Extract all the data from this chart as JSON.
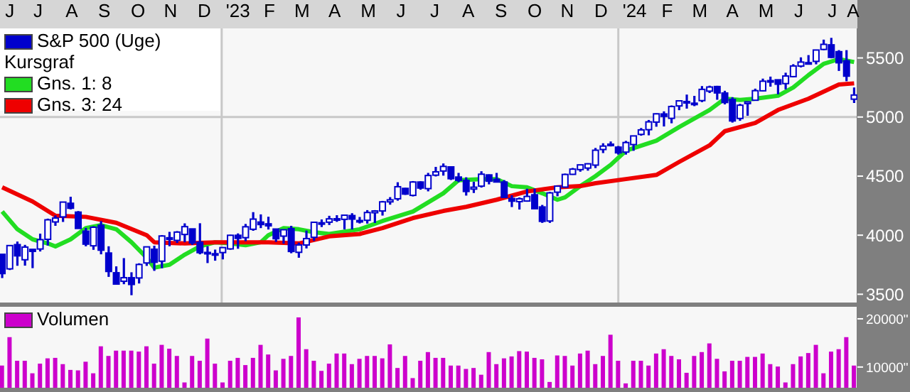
{
  "chart_data": [
    {
      "type": "candlestick",
      "legend": "top left",
      "legend_title": "Kursgraf",
      "xlim": [
        "2022-06-11",
        "2024-08-08"
      ],
      "ylim": [
        3430,
        5750
      ],
      "yticks": [
        3500,
        4000,
        4500,
        5000,
        5500
      ],
      "xticks": [
        {
          "value": "2022-06-20",
          "label": "J"
        },
        {
          "value": "2022-07-16",
          "label": "J"
        },
        {
          "value": "2022-08-16",
          "label": "A"
        },
        {
          "value": "2022-09-15",
          "label": "S"
        },
        {
          "value": "2022-10-16",
          "label": "O"
        },
        {
          "value": "2022-11-15",
          "label": "N"
        },
        {
          "value": "2022-12-16",
          "label": "D"
        },
        {
          "value": "2023-01-16",
          "label": "'23"
        },
        {
          "value": "2023-02-14",
          "label": "F"
        },
        {
          "value": "2023-03-16",
          "label": "M"
        },
        {
          "value": "2023-04-15",
          "label": "A"
        },
        {
          "value": "2023-05-16",
          "label": "M"
        },
        {
          "value": "2023-06-15",
          "label": "J"
        },
        {
          "value": "2023-07-16",
          "label": "J"
        },
        {
          "value": "2023-08-16",
          "label": "A"
        },
        {
          "value": "2023-09-15",
          "label": "S"
        },
        {
          "value": "2023-10-16",
          "label": "O"
        },
        {
          "value": "2023-11-15",
          "label": "N"
        },
        {
          "value": "2023-12-16",
          "label": "D"
        },
        {
          "value": "2024-01-16",
          "label": "'24"
        },
        {
          "value": "2024-02-15",
          "label": "F"
        },
        {
          "value": "2024-03-16",
          "label": "M"
        },
        {
          "value": "2024-04-15",
          "label": "A"
        },
        {
          "value": "2024-05-16",
          "label": "M"
        },
        {
          "value": "2024-06-15",
          "label": "J"
        },
        {
          "value": "2024-07-16",
          "label": "J"
        },
        {
          "value": "2024-08-04",
          "label": "A"
        }
      ],
      "ref_lines": [
        {
          "axis": "x",
          "value": "2023-01-01",
          "label": null,
          "color": "#c8c8c8"
        },
        {
          "axis": "x",
          "value": "2024-01-01",
          "label": null,
          "color": "#c8c8c8"
        },
        {
          "axis": "y",
          "value": 5000,
          "label": null,
          "color": "#c8c8c8"
        }
      ],
      "x": [
        "2022-06-13",
        "2022-06-20",
        "2022-06-27",
        "2022-07-04",
        "2022-07-11",
        "2022-07-18",
        "2022-07-25",
        "2022-08-01",
        "2022-08-08",
        "2022-08-15",
        "2022-08-22",
        "2022-08-29",
        "2022-09-05",
        "2022-09-12",
        "2022-09-19",
        "2022-09-26",
        "2022-10-03",
        "2022-10-10",
        "2022-10-17",
        "2022-10-24",
        "2022-10-31",
        "2022-11-07",
        "2022-11-14",
        "2022-11-21",
        "2022-11-28",
        "2022-12-05",
        "2022-12-12",
        "2022-12-19",
        "2022-12-26",
        "2023-01-02",
        "2023-01-09",
        "2023-01-16",
        "2023-01-23",
        "2023-01-30",
        "2023-02-06",
        "2023-02-13",
        "2023-02-20",
        "2023-02-27",
        "2023-03-06",
        "2023-03-13",
        "2023-03-20",
        "2023-03-27",
        "2023-04-03",
        "2023-04-10",
        "2023-04-17",
        "2023-04-24",
        "2023-05-01",
        "2023-05-08",
        "2023-05-15",
        "2023-05-22",
        "2023-05-29",
        "2023-06-05",
        "2023-06-12",
        "2023-06-19",
        "2023-06-26",
        "2023-07-03",
        "2023-07-10",
        "2023-07-17",
        "2023-07-24",
        "2023-07-31",
        "2023-08-07",
        "2023-08-14",
        "2023-08-21",
        "2023-08-28",
        "2023-09-04",
        "2023-09-11",
        "2023-09-18",
        "2023-09-25",
        "2023-10-02",
        "2023-10-09",
        "2023-10-16",
        "2023-10-23",
        "2023-10-30",
        "2023-11-06",
        "2023-11-13",
        "2023-11-20",
        "2023-11-27",
        "2023-12-04",
        "2023-12-11",
        "2023-12-18",
        "2023-12-25",
        "2024-01-01",
        "2024-01-08",
        "2024-01-15",
        "2024-01-22",
        "2024-01-29",
        "2024-02-05",
        "2024-02-12",
        "2024-02-19",
        "2024-02-26",
        "2024-03-04",
        "2024-03-11",
        "2024-03-18",
        "2024-03-25",
        "2024-04-01",
        "2024-04-08",
        "2024-04-15",
        "2024-04-22",
        "2024-04-29",
        "2024-05-06",
        "2024-05-13",
        "2024-05-20",
        "2024-05-27",
        "2024-06-03",
        "2024-06-10",
        "2024-06-17",
        "2024-06-24",
        "2024-07-01",
        "2024-07-08",
        "2024-07-15",
        "2024-07-22",
        "2024-07-29",
        "2024-08-05"
      ],
      "series": [
        {
          "name": "S&P 500 (Uge)",
          "color": "#0000cc",
          "ohlc": [
            [
              3838,
              3838,
              3637,
              3675
            ],
            [
              3715,
              3913,
              3705,
              3912
            ],
            [
              3920,
              3946,
              3741,
              3825
            ],
            [
              3792,
              3918,
              3742,
              3899
            ],
            [
              3880,
              3880,
              3721,
              3863
            ],
            [
              3883,
              4013,
              3862,
              3962
            ],
            [
              3965,
              4140,
              3912,
              4130
            ],
            [
              4112,
              4167,
              4079,
              4145
            ],
            [
              4155,
              4280,
              4112,
              4280
            ],
            [
              4270,
              4325,
              4218,
              4228
            ],
            [
              4195,
              4204,
              4057,
              4057
            ],
            [
              4034,
              4062,
              3906,
              3924
            ],
            [
              3910,
              4076,
              3876,
              4067
            ],
            [
              4084,
              4119,
              3838,
              3873
            ],
            [
              3849,
              3906,
              3647,
              3693
            ],
            [
              3682,
              3736,
              3584,
              3586
            ],
            [
              3610,
              3806,
              3585,
              3640
            ],
            [
              3640,
              3686,
              3492,
              3583
            ],
            [
              3638,
              3762,
              3591,
              3752
            ],
            [
              3765,
              3905,
              3740,
              3901
            ],
            [
              3881,
              3911,
              3698,
              3771
            ],
            [
              3780,
              4000,
              3720,
              3993
            ],
            [
              3978,
              4028,
              3906,
              3965
            ],
            [
              3956,
              4034,
              3934,
              4026
            ],
            [
              4006,
              4100,
              3940,
              4072
            ],
            [
              4053,
              4053,
              3918,
              3934
            ],
            [
              3940,
              4101,
              3838,
              3852
            ],
            [
              3854,
              3906,
              3764,
              3845
            ],
            [
              3843,
              3878,
              3784,
              3840
            ],
            [
              3853,
              3896,
              3795,
              3895
            ],
            [
              3884,
              4003,
              3877,
              3999
            ],
            [
              3999,
              4015,
              3885,
              3973
            ],
            [
              3979,
              4095,
              3949,
              4071
            ],
            [
              4050,
              4195,
              4037,
              4136
            ],
            [
              4111,
              4176,
              4060,
              4090
            ],
            [
              4096,
              4156,
              4048,
              4079
            ],
            [
              4052,
              4052,
              3943,
              3970
            ],
            [
              3992,
              4048,
              3928,
              4046
            ],
            [
              4055,
              4079,
              3847,
              3862
            ],
            [
              3855,
              3937,
              3809,
              3917
            ],
            [
              3917,
              4039,
              3888,
              3971
            ],
            [
              3982,
              4110,
              3951,
              4109
            ],
            [
              4102,
              4133,
              4069,
              4105
            ],
            [
              4110,
              4164,
              4086,
              4138
            ],
            [
              4139,
              4169,
              4113,
              4133
            ],
            [
              4134,
              4170,
              4049,
              4169
            ],
            [
              4166,
              4186,
              4048,
              4136
            ],
            [
              4124,
              4154,
              4099,
              4124
            ],
            [
              4126,
              4212,
              4098,
              4192
            ],
            [
              4190,
              4212,
              4103,
              4205
            ],
            [
              4205,
              4290,
              4166,
              4282
            ],
            [
              4282,
              4322,
              4258,
              4299
            ],
            [
              4308,
              4448,
              4292,
              4410
            ],
            [
              4396,
              4400,
              4341,
              4348
            ],
            [
              4337,
              4458,
              4328,
              4450
            ],
            [
              4450,
              4456,
              4385,
              4399
            ],
            [
              4394,
              4527,
              4371,
              4505
            ],
            [
              4508,
              4578,
              4497,
              4536
            ],
            [
              4543,
              4607,
              4504,
              4582
            ],
            [
              4578,
              4584,
              4467,
              4478
            ],
            [
              4492,
              4527,
              4448,
              4464
            ],
            [
              4464,
              4490,
              4335,
              4370
            ],
            [
              4390,
              4452,
              4357,
              4406
            ],
            [
              4415,
              4541,
              4403,
              4516
            ],
            [
              4510,
              4514,
              4430,
              4457
            ],
            [
              4473,
              4527,
              4448,
              4450
            ],
            [
              4450,
              4466,
              4317,
              4320
            ],
            [
              4310,
              4338,
              4238,
              4288
            ],
            [
              4284,
              4319,
              4217,
              4308
            ],
            [
              4289,
              4393,
              4283,
              4328
            ],
            [
              4342,
              4394,
              4223,
              4224
            ],
            [
              4239,
              4256,
              4104,
              4117
            ],
            [
              4120,
              4366,
              4104,
              4358
            ],
            [
              4364,
              4415,
              4329,
              4415
            ],
            [
              4407,
              4521,
              4402,
              4514
            ],
            [
              4515,
              4569,
              4511,
              4559
            ],
            [
              4555,
              4595,
              4537,
              4595
            ],
            [
              4568,
              4609,
              4546,
              4604
            ],
            [
              4593,
              4738,
              4568,
              4719
            ],
            [
              4725,
              4778,
              4695,
              4754
            ],
            [
              4759,
              4793,
              4751,
              4770
            ],
            [
              4745,
              4755,
              4682,
              4697
            ],
            [
              4703,
              4798,
              4682,
              4784
            ],
            [
              4767,
              4842,
              4714,
              4840
            ],
            [
              4853,
              4907,
              4842,
              4891
            ],
            [
              4893,
              4975,
              4845,
              4959
            ],
            [
              4957,
              5031,
              4918,
              5027
            ],
            [
              5026,
              5048,
              4920,
              5006
            ],
            [
              4989,
              5098,
              4947,
              5089
            ],
            [
              5094,
              5140,
              5058,
              5137
            ],
            [
              5131,
              5190,
              5071,
              5124
            ],
            [
              5111,
              5179,
              5092,
              5117
            ],
            [
              5139,
              5262,
              5126,
              5234
            ],
            [
              5219,
              5265,
              5203,
              5254
            ],
            [
              5258,
              5264,
              5146,
              5204
            ],
            [
              5203,
              5222,
              5107,
              5123
            ],
            [
              5149,
              5168,
              4953,
              4967
            ],
            [
              4988,
              5112,
              4968,
              5100
            ],
            [
              5114,
              5128,
              5011,
              5128
            ],
            [
              5142,
              5240,
              5142,
              5223
            ],
            [
              5222,
              5325,
              5218,
              5303
            ],
            [
              5308,
              5342,
              5257,
              5305
            ],
            [
              5315,
              5315,
              5192,
              5278
            ],
            [
              5283,
              5375,
              5234,
              5347
            ],
            [
              5342,
              5447,
              5336,
              5432
            ],
            [
              5431,
              5505,
              5420,
              5465
            ],
            [
              5459,
              5524,
              5447,
              5460
            ],
            [
              5471,
              5570,
              5446,
              5567
            ],
            [
              5572,
              5655,
              5566,
              5615
            ],
            [
              5611,
              5670,
              5497,
              5505
            ],
            [
              5553,
              5566,
              5390,
              5459
            ],
            [
              5476,
              5566,
              5303,
              5346
            ],
            [
              5151,
              5250,
              5119,
              5186
            ]
          ]
        },
        {
          "name": "Gns. 1: 8",
          "type": "line",
          "color": "#22dd22",
          "x": [
            "2022-06-13",
            "2022-06-27",
            "2022-07-11",
            "2022-07-25",
            "2022-08-01",
            "2022-08-15",
            "2022-08-29",
            "2022-09-12",
            "2022-09-26",
            "2022-10-10",
            "2022-10-24",
            "2022-10-31",
            "2022-11-14",
            "2022-11-28",
            "2022-12-12",
            "2022-12-26",
            "2023-01-09",
            "2023-01-23",
            "2023-02-06",
            "2023-02-13",
            "2023-02-27",
            "2023-03-13",
            "2023-03-27",
            "2023-04-10",
            "2023-05-08",
            "2023-05-29",
            "2023-06-26",
            "2023-07-24",
            "2023-08-07",
            "2023-08-28",
            "2023-09-11",
            "2023-09-25",
            "2023-10-09",
            "2023-10-23",
            "2023-11-06",
            "2023-11-13",
            "2023-11-27",
            "2023-12-11",
            "2023-12-25",
            "2024-01-08",
            "2024-02-05",
            "2024-02-26",
            "2024-03-25",
            "2024-04-08",
            "2024-04-22",
            "2024-05-06",
            "2024-05-27",
            "2024-06-10",
            "2024-06-24",
            "2024-07-08",
            "2024-07-22",
            "2024-08-05"
          ],
          "values": [
            4200,
            4050,
            3965,
            3930,
            3905,
            3965,
            4060,
            4085,
            4050,
            3940,
            3810,
            3725,
            3750,
            3835,
            3905,
            3940,
            3930,
            3915,
            3940,
            4000,
            4060,
            4050,
            4025,
            4010,
            4050,
            4120,
            4200,
            4355,
            4465,
            4475,
            4475,
            4415,
            4405,
            4355,
            4300,
            4320,
            4415,
            4500,
            4595,
            4715,
            4800,
            4915,
            5060,
            5155,
            5145,
            5155,
            5180,
            5250,
            5355,
            5450,
            5490,
            5465
          ]
        },
        {
          "name": "Gns. 3: 24",
          "type": "line",
          "color": "#ee0000",
          "x": [
            "2022-06-13",
            "2022-07-11",
            "2022-08-01",
            "2022-08-29",
            "2022-09-26",
            "2022-10-24",
            "2022-10-31",
            "2022-11-28",
            "2022-12-26",
            "2023-01-23",
            "2023-02-13",
            "2023-03-13",
            "2023-04-10",
            "2023-05-08",
            "2023-05-29",
            "2023-06-26",
            "2023-07-24",
            "2023-08-14",
            "2023-09-11",
            "2023-10-09",
            "2023-11-06",
            "2023-11-27",
            "2023-12-11",
            "2024-01-08",
            "2024-02-05",
            "2024-02-26",
            "2024-03-25",
            "2024-04-08",
            "2024-05-06",
            "2024-05-27",
            "2024-06-24",
            "2024-07-22",
            "2024-08-05"
          ],
          "values": [
            4405,
            4285,
            4165,
            4155,
            4105,
            4000,
            3940,
            3930,
            3940,
            3940,
            3940,
            3930,
            3990,
            4010,
            4060,
            4145,
            4205,
            4240,
            4300,
            4370,
            4405,
            4415,
            4440,
            4475,
            4510,
            4620,
            4760,
            4880,
            4950,
            5060,
            5155,
            5275,
            5285
          ]
        }
      ]
    },
    {
      "type": "bar",
      "legend": "top left",
      "tick_labels": "y",
      "xlim": [
        "2022-06-11",
        "2024-08-08"
      ],
      "ylim": [
        5700,
        22500
      ],
      "yticks": [
        {
          "value": 10000,
          "label": "10000\""
        },
        {
          "value": 20000,
          "label": "20000\""
        }
      ],
      "x": [
        "2022-06-13",
        "2022-06-20",
        "2022-06-27",
        "2022-07-04",
        "2022-07-11",
        "2022-07-18",
        "2022-07-25",
        "2022-08-01",
        "2022-08-08",
        "2022-08-15",
        "2022-08-22",
        "2022-08-29",
        "2022-09-05",
        "2022-09-12",
        "2022-09-19",
        "2022-09-26",
        "2022-10-03",
        "2022-10-10",
        "2022-10-17",
        "2022-10-24",
        "2022-10-31",
        "2022-11-07",
        "2022-11-14",
        "2022-11-21",
        "2022-11-28",
        "2022-12-05",
        "2022-12-12",
        "2022-12-19",
        "2022-12-26",
        "2023-01-02",
        "2023-01-09",
        "2023-01-16",
        "2023-01-23",
        "2023-01-30",
        "2023-02-06",
        "2023-02-13",
        "2023-02-20",
        "2023-02-27",
        "2023-03-06",
        "2023-03-13",
        "2023-03-20",
        "2023-03-27",
        "2023-04-03",
        "2023-04-10",
        "2023-04-17",
        "2023-04-24",
        "2023-05-01",
        "2023-05-08",
        "2023-05-15",
        "2023-05-22",
        "2023-05-29",
        "2023-06-05",
        "2023-06-12",
        "2023-06-19",
        "2023-06-26",
        "2023-07-03",
        "2023-07-10",
        "2023-07-17",
        "2023-07-24",
        "2023-07-31",
        "2023-08-07",
        "2023-08-14",
        "2023-08-21",
        "2023-08-28",
        "2023-09-04",
        "2023-09-11",
        "2023-09-18",
        "2023-09-25",
        "2023-10-02",
        "2023-10-09",
        "2023-10-16",
        "2023-10-23",
        "2023-10-30",
        "2023-11-06",
        "2023-11-13",
        "2023-11-20",
        "2023-11-27",
        "2023-12-04",
        "2023-12-11",
        "2023-12-18",
        "2023-12-25",
        "2024-01-01",
        "2024-01-08",
        "2024-01-15",
        "2024-01-22",
        "2024-01-29",
        "2024-02-05",
        "2024-02-12",
        "2024-02-19",
        "2024-02-26",
        "2024-03-04",
        "2024-03-11",
        "2024-03-18",
        "2024-03-25",
        "2024-04-01",
        "2024-04-08",
        "2024-04-15",
        "2024-04-22",
        "2024-04-29",
        "2024-05-06",
        "2024-05-13",
        "2024-05-20",
        "2024-05-27",
        "2024-06-03",
        "2024-06-10",
        "2024-06-17",
        "2024-06-24",
        "2024-07-01",
        "2024-07-08",
        "2024-07-15",
        "2024-07-22",
        "2024-07-29",
        "2024-08-05"
      ],
      "series": [
        {
          "name": "Volumen",
          "color": "#cc00cc",
          "values": [
            10300,
            16200,
            11300,
            11300,
            8700,
            10700,
            11800,
            11900,
            10600,
            9400,
            9300,
            11100,
            8700,
            14300,
            12300,
            13400,
            13400,
            13400,
            13200,
            14300,
            10700,
            14600,
            13800,
            12300,
            6800,
            12300,
            11300,
            15900,
            10700,
            6800,
            11300,
            11900,
            10400,
            11900,
            14600,
            12600,
            9300,
            11700,
            12300,
            20300,
            13700,
            11300,
            9200,
            10700,
            12800,
            12800,
            10600,
            11700,
            12300,
            12300,
            11800,
            14700,
            9800,
            12300,
            7700,
            11300,
            13100,
            11900,
            11900,
            10300,
            10300,
            9600,
            9800,
            8400,
            13100,
            10600,
            11800,
            12200,
            13300,
            13200,
            11900,
            11600,
            6900,
            12400,
            12300,
            10300,
            12800,
            13400,
            10600,
            12300,
            16700,
            11300,
            6600,
            11300,
            11300,
            10300,
            12800,
            13700,
            12300,
            11600,
            8800,
            12300,
            13100,
            14900,
            11700,
            9100,
            11300,
            11300,
            12100,
            12100,
            12800,
            10600,
            10100,
            6800,
            10600,
            12200,
            12900,
            14600,
            8700,
            13200,
            13700,
            16200,
            10300
          ]
        }
      ]
    }
  ]
}
